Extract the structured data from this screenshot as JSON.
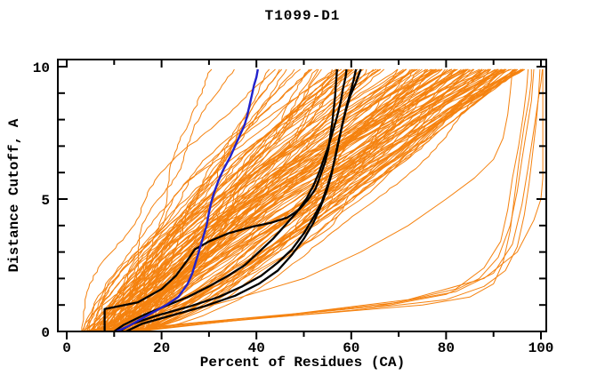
{
  "title": "T1099-D1",
  "axes": {
    "xlabel": "Percent of Residues (CA)",
    "ylabel": "Distance Cutoff, A",
    "x_major_ticks": [
      0,
      20,
      40,
      60,
      80,
      100
    ],
    "x_tick_labels": [
      "0",
      "20",
      "40",
      "60",
      "80",
      "100"
    ],
    "x_minor_ticks": [
      10,
      30,
      50,
      70,
      90
    ],
    "y_major_ticks": [
      0,
      5,
      10
    ],
    "y_tick_labels": [
      "0",
      "5",
      "10"
    ],
    "y_minor_ticks": [
      1,
      2,
      3,
      4,
      6,
      7,
      8,
      9
    ],
    "x_range_display": [
      -1.9,
      101.1
    ],
    "y_range_display": [
      0,
      10.27
    ]
  },
  "colors": {
    "background": "#FFFFFF",
    "axis": "#000000",
    "text": "#000000",
    "orange": "#F5820F",
    "blue": "#2222CC",
    "black": "#000000"
  },
  "chart_data": {
    "type": "line",
    "title": "T1099-D1",
    "xlabel": "Percent of Residues (CA)",
    "ylabel": "Distance Cutoff, A",
    "xlim": [
      0,
      100
    ],
    "ylim": [
      0,
      10
    ],
    "grid": false,
    "legend": "none",
    "description": "Cumulative percent of CA residues within each distance cutoff. ~140 model curves in orange, 4 highlighted models in black, 1 highlighted model in blue; a handful of orange outlier models lie far right near 90-100%.",
    "series": [
      {
        "name": "highlighted-model-blue",
        "color_key": "blue",
        "width": 2.4,
        "points": [
          [
            10.5,
            0
          ],
          [
            13,
            0.2
          ],
          [
            18,
            0.7
          ],
          [
            21,
            1.0
          ],
          [
            23.5,
            1.3
          ],
          [
            25.5,
            1.8
          ],
          [
            26.5,
            2.2
          ],
          [
            27.5,
            2.8
          ],
          [
            28.5,
            3.4
          ],
          [
            29.5,
            4.0
          ],
          [
            30,
            4.5
          ],
          [
            30.5,
            4.9
          ],
          [
            31,
            5.2
          ],
          [
            32,
            5.7
          ],
          [
            33,
            6.1
          ],
          [
            34.5,
            6.6
          ],
          [
            35.5,
            7.0
          ],
          [
            36.5,
            7.4
          ],
          [
            37.5,
            7.8
          ],
          [
            38,
            8.1
          ],
          [
            38.5,
            8.5
          ],
          [
            39,
            8.9
          ],
          [
            39.5,
            9.3
          ],
          [
            40,
            9.6
          ],
          [
            40.3,
            9.9
          ]
        ]
      },
      {
        "name": "highlighted-model-black-1",
        "color_key": "black",
        "width": 2.3,
        "points": [
          [
            8,
            0
          ],
          [
            8,
            0.85
          ],
          [
            10,
            0.92
          ],
          [
            15,
            1.1
          ],
          [
            20,
            1.6
          ],
          [
            23,
            2.1
          ],
          [
            25.5,
            2.7
          ],
          [
            27,
            3.1
          ],
          [
            30,
            3.4
          ],
          [
            34,
            3.7
          ],
          [
            39,
            3.95
          ],
          [
            43,
            4.1
          ],
          [
            46.5,
            4.3
          ],
          [
            49,
            4.6
          ],
          [
            51,
            5.0
          ],
          [
            52.5,
            5.4
          ],
          [
            53.5,
            5.9
          ],
          [
            54.5,
            6.4
          ],
          [
            55.2,
            6.9
          ],
          [
            55.6,
            7.4
          ],
          [
            56,
            7.9
          ],
          [
            56.3,
            8.4
          ],
          [
            56.6,
            8.9
          ],
          [
            56.8,
            9.4
          ],
          [
            57,
            9.9
          ]
        ]
      },
      {
        "name": "highlighted-model-black-2",
        "color_key": "black",
        "width": 2.3,
        "points": [
          [
            10,
            0
          ],
          [
            12,
            0.25
          ],
          [
            16,
            0.6
          ],
          [
            20,
            0.9
          ],
          [
            25.5,
            1.3
          ],
          [
            30,
            1.7
          ],
          [
            34,
            2.1
          ],
          [
            37.5,
            2.5
          ],
          [
            40.5,
            3.0
          ],
          [
            43.5,
            3.5
          ],
          [
            46,
            4.0
          ],
          [
            48.5,
            4.5
          ],
          [
            50.5,
            5.0
          ],
          [
            52,
            5.5
          ],
          [
            53.2,
            6.0
          ],
          [
            54.2,
            6.5
          ],
          [
            55.2,
            7.0
          ],
          [
            56.2,
            7.6
          ],
          [
            57,
            8.1
          ],
          [
            57.8,
            8.7
          ],
          [
            58.3,
            9.2
          ],
          [
            58.8,
            9.6
          ],
          [
            59,
            9.9
          ]
        ]
      },
      {
        "name": "highlighted-model-black-3",
        "color_key": "black",
        "width": 2.3,
        "points": [
          [
            11,
            0
          ],
          [
            14,
            0.3
          ],
          [
            19,
            0.6
          ],
          [
            26,
            0.95
          ],
          [
            32,
            1.3
          ],
          [
            37,
            1.7
          ],
          [
            41,
            2.1
          ],
          [
            44.5,
            2.6
          ],
          [
            47.5,
            3.1
          ],
          [
            50,
            3.7
          ],
          [
            52,
            4.3
          ],
          [
            53.8,
            4.9
          ],
          [
            55,
            5.5
          ],
          [
            56,
            6.1
          ],
          [
            56.8,
            6.7
          ],
          [
            57.5,
            7.3
          ],
          [
            58.2,
            7.9
          ],
          [
            59,
            8.5
          ],
          [
            59.8,
            9.0
          ],
          [
            60.5,
            9.5
          ],
          [
            61,
            9.9
          ]
        ]
      },
      {
        "name": "highlighted-model-black-4",
        "color_key": "black",
        "width": 2.3,
        "points": [
          [
            12.5,
            0
          ],
          [
            16,
            0.3
          ],
          [
            22,
            0.6
          ],
          [
            29,
            0.95
          ],
          [
            35.5,
            1.35
          ],
          [
            40.5,
            1.8
          ],
          [
            44.5,
            2.3
          ],
          [
            47.5,
            2.9
          ],
          [
            50,
            3.5
          ],
          [
            52,
            4.1
          ],
          [
            53.5,
            4.7
          ],
          [
            54.8,
            5.3
          ],
          [
            55.8,
            5.9
          ],
          [
            56.5,
            6.5
          ],
          [
            57.2,
            7.1
          ],
          [
            58,
            7.7
          ],
          [
            58.8,
            8.3
          ],
          [
            59.8,
            8.9
          ],
          [
            61,
            9.4
          ],
          [
            62,
            9.9
          ]
        ]
      },
      {
        "name": "outlier-model-1",
        "color_key": "orange",
        "width": 1,
        "points": [
          [
            10,
            0
          ],
          [
            30,
            0.35
          ],
          [
            55,
            0.7
          ],
          [
            75,
            1.0
          ],
          [
            85,
            1.3
          ],
          [
            90,
            1.8
          ],
          [
            92,
            2.6
          ],
          [
            93.5,
            3.8
          ],
          [
            94.5,
            5.2
          ],
          [
            95.5,
            6.6
          ],
          [
            96.5,
            7.8
          ],
          [
            97.5,
            8.8
          ],
          [
            98,
            9.5
          ],
          [
            98,
            9.9
          ]
        ]
      },
      {
        "name": "outlier-model-2",
        "color_key": "orange",
        "width": 1,
        "points": [
          [
            12,
            0
          ],
          [
            35,
            0.4
          ],
          [
            60,
            0.8
          ],
          [
            80,
            1.2
          ],
          [
            88,
            1.7
          ],
          [
            92.5,
            2.3
          ],
          [
            95,
            3.2
          ],
          [
            96.5,
            4.4
          ],
          [
            97.5,
            5.6
          ],
          [
            98.3,
            6.8
          ],
          [
            99,
            7.9
          ],
          [
            99.5,
            8.9
          ],
          [
            99.8,
            9.9
          ]
        ]
      },
      {
        "name": "outlier-model-3",
        "color_key": "orange",
        "width": 1,
        "points": [
          [
            9,
            0
          ],
          [
            25,
            0.3
          ],
          [
            48,
            0.65
          ],
          [
            68,
            1.0
          ],
          [
            80,
            1.4
          ],
          [
            87,
            2.0
          ],
          [
            91,
            2.8
          ],
          [
            93.5,
            4.0
          ],
          [
            95,
            5.3
          ],
          [
            96,
            6.5
          ],
          [
            97,
            7.6
          ],
          [
            98,
            8.7
          ],
          [
            98.5,
            9.9
          ]
        ]
      },
      {
        "name": "outlier-model-4",
        "color_key": "orange",
        "width": 1,
        "points": [
          [
            14,
            0
          ],
          [
            40,
            0.5
          ],
          [
            65,
            0.95
          ],
          [
            82,
            1.5
          ],
          [
            90,
            2.2
          ],
          [
            94,
            3.3
          ],
          [
            96,
            4.8
          ],
          [
            97.3,
            6.2
          ],
          [
            98.4,
            7.5
          ],
          [
            99.3,
            8.6
          ],
          [
            100,
            9.4
          ],
          [
            100.3,
            9.9
          ]
        ]
      },
      {
        "name": "outlier-model-5",
        "color_key": "orange",
        "width": 1,
        "points": [
          [
            11,
            0
          ],
          [
            28,
            0.35
          ],
          [
            50,
            0.7
          ],
          [
            70,
            1.1
          ],
          [
            82,
            1.6
          ],
          [
            88,
            2.4
          ],
          [
            91.5,
            3.4
          ],
          [
            93,
            4.6
          ],
          [
            94,
            5.8
          ],
          [
            95.3,
            7.0
          ],
          [
            96.3,
            8.2
          ],
          [
            97,
            9.2
          ],
          [
            97.3,
            9.9
          ]
        ]
      },
      {
        "name": "outlier-model-6",
        "color_key": "orange",
        "width": 1,
        "points": [
          [
            15,
            0
          ],
          [
            45,
            0.6
          ],
          [
            72,
            1.2
          ],
          [
            88,
            2.0
          ],
          [
            95,
            3.0
          ],
          [
            98.5,
            4.2
          ],
          [
            100,
            5.0
          ],
          [
            100.4,
            5.8
          ],
          [
            100.4,
            9.9
          ]
        ]
      },
      {
        "name": "outlier-model-7",
        "color_key": "orange",
        "width": 1,
        "points": [
          [
            8,
            0
          ],
          [
            20,
            0.5
          ],
          [
            35,
            1.2
          ],
          [
            50,
            2.0
          ],
          [
            62,
            3.0
          ],
          [
            72,
            4.0
          ],
          [
            80,
            5.0
          ],
          [
            86,
            5.8
          ],
          [
            90,
            6.5
          ],
          [
            92,
            7.3
          ],
          [
            93,
            8.2
          ],
          [
            93.5,
            9.0
          ],
          [
            94,
            9.9
          ]
        ]
      }
    ],
    "orange_ensemble": {
      "color_key": "orange",
      "count": 132,
      "seed": 7,
      "line_width": 1,
      "y_max": 9.9,
      "y_step": 0.15,
      "x_start_range": [
        3,
        17
      ],
      "x_top_range": [
        20,
        96.5
      ],
      "x_top_skew": 0.42,
      "shape_exp_range": [
        0.55,
        1.7
      ],
      "wiggle_amp_range": [
        0.4,
        2.0
      ]
    }
  }
}
